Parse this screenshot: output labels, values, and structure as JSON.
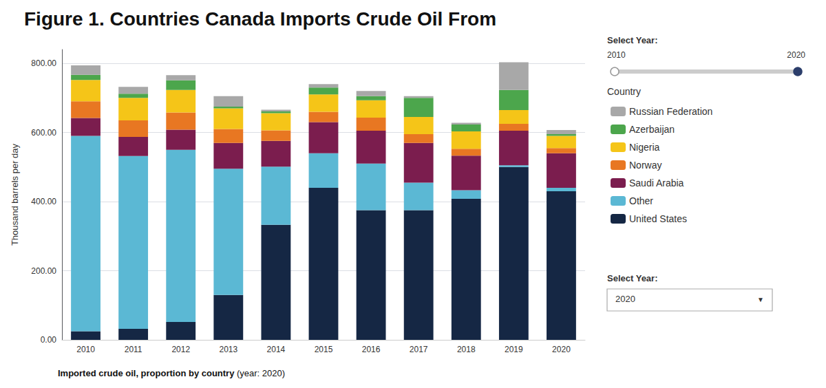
{
  "chart_data": {
    "type": "bar",
    "title": "Figure 1. Countries Canada Imports Crude Oil From",
    "ylabel": "Thousand barrels per day",
    "categories": [
      "2010",
      "2011",
      "2012",
      "2013",
      "2014",
      "2015",
      "2016",
      "2017",
      "2018",
      "2019",
      "2020"
    ],
    "series": [
      {
        "name": "United States",
        "color": "#152744",
        "values": [
          25,
          32,
          52,
          130,
          333,
          440,
          375,
          375,
          408,
          500,
          430
        ]
      },
      {
        "name": "Other",
        "color": "#5BB8D4",
        "values": [
          565,
          500,
          498,
          365,
          168,
          100,
          135,
          80,
          25,
          5,
          10
        ]
      },
      {
        "name": "Saudi Arabia",
        "color": "#7B1D4E",
        "values": [
          52,
          55,
          58,
          75,
          75,
          90,
          95,
          115,
          100,
          100,
          100
        ]
      },
      {
        "name": "Norway",
        "color": "#E87722",
        "values": [
          48,
          48,
          50,
          40,
          30,
          30,
          38,
          25,
          20,
          20,
          15
        ]
      },
      {
        "name": "Nigeria",
        "color": "#F5C518",
        "values": [
          62,
          65,
          65,
          60,
          50,
          50,
          50,
          50,
          50,
          40,
          35
        ]
      },
      {
        "name": "Azerbaijan",
        "color": "#4CA64C",
        "values": [
          15,
          12,
          28,
          5,
          5,
          20,
          12,
          55,
          20,
          58,
          5
        ]
      },
      {
        "name": "Russian Federation",
        "color": "#A8A8A8",
        "values": [
          27,
          20,
          15,
          30,
          5,
          10,
          15,
          5,
          5,
          80,
          12
        ]
      }
    ],
    "legend_order": [
      "Russian Federation",
      "Azerbaijan",
      "Nigeria",
      "Norway",
      "Saudi Arabia",
      "Other",
      "United States"
    ],
    "stacked": true,
    "ylim": [
      0,
      840
    ],
    "yticks": [
      {
        "value": 0,
        "label": "0.00"
      },
      {
        "value": 200,
        "label": "200.00"
      },
      {
        "value": 400,
        "label": "400.00"
      },
      {
        "value": 600,
        "label": "600.00"
      },
      {
        "value": 800,
        "label": "800.00"
      }
    ],
    "grid": true,
    "legend": "right",
    "annotations": [
      "Imported crude oil, proportion by country",
      " (year: 2020)",
      "Country",
      "Select Year:",
      "2010",
      "2020",
      "Select Year:",
      "2020",
      "▼"
    ]
  }
}
